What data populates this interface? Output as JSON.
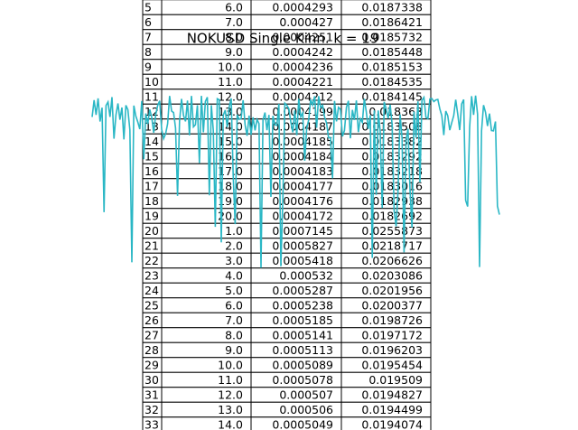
{
  "title": "NOKUSD Single Kinn. k = 19",
  "table": {
    "rows": [
      [
        "5",
        "6.0",
        "0.0004293",
        "0.0187338"
      ],
      [
        "6",
        "7.0",
        "0.000427",
        "0.0186421"
      ],
      [
        "7",
        "8.0",
        "0.0004251",
        "0.0185732"
      ],
      [
        "8",
        "9.0",
        "0.0004242",
        "0.0185448"
      ],
      [
        "9",
        "10.0",
        "0.0004236",
        "0.0185153"
      ],
      [
        "10",
        "11.0",
        "0.0004221",
        "0.0184535"
      ],
      [
        "11",
        "12.0",
        "0.0004212",
        "0.0184145"
      ],
      [
        "12",
        "13.0",
        "0.0004199",
        "0.018363"
      ],
      [
        "13",
        "14.0",
        "0.0004187",
        "0.0183508"
      ],
      [
        "14",
        "15.0",
        "0.0004185",
        "0.0183382"
      ],
      [
        "15",
        "16.0",
        "0.0004184",
        "0.0183292"
      ],
      [
        "16",
        "17.0",
        "0.0004183",
        "0.0183218"
      ],
      [
        "17",
        "18.0",
        "0.0004177",
        "0.0183016"
      ],
      [
        "18",
        "19.0",
        "0.0004176",
        "0.0182938"
      ],
      [
        "19",
        "20.0",
        "0.0004172",
        "0.0182692"
      ],
      [
        "20",
        "1.0",
        "0.0007145",
        "0.0255873"
      ],
      [
        "21",
        "2.0",
        "0.0005827",
        "0.0218717"
      ],
      [
        "22",
        "3.0",
        "0.0005418",
        "0.0206626"
      ],
      [
        "23",
        "4.0",
        "0.000532",
        "0.0203086"
      ],
      [
        "24",
        "5.0",
        "0.0005287",
        "0.0201956"
      ],
      [
        "25",
        "6.0",
        "0.0005238",
        "0.0200377"
      ],
      [
        "26",
        "7.0",
        "0.0005185",
        "0.0198726"
      ],
      [
        "27",
        "8.0",
        "0.0005141",
        "0.0197172"
      ],
      [
        "28",
        "9.0",
        "0.0005113",
        "0.0196203"
      ],
      [
        "29",
        "10.0",
        "0.0005089",
        "0.0195454"
      ],
      [
        "30",
        "11.0",
        "0.0005078",
        "0.019509"
      ],
      [
        "31",
        "12.0",
        "0.000507",
        "0.0194827"
      ],
      [
        "32",
        "13.0",
        "0.000506",
        "0.0194499"
      ],
      [
        "33",
        "14.0",
        "0.0005049",
        "0.0194074"
      ]
    ]
  }
}
